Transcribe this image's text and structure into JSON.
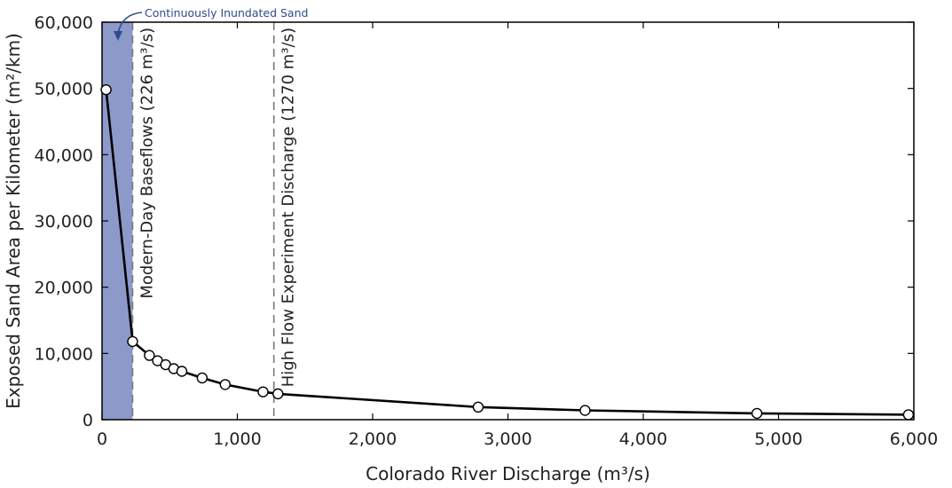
{
  "chart_data": {
    "type": "line",
    "xlabel": "Colorado River Discharge (m³/s)",
    "ylabel": "Exposed Sand Area per Kilometer (m²/km)",
    "xlim": [
      0,
      6000
    ],
    "ylim": [
      0,
      60000
    ],
    "x_ticks": [
      0,
      1000,
      2000,
      3000,
      4000,
      5000,
      6000
    ],
    "x_tick_labels": [
      "0",
      "1,000",
      "2,000",
      "3,000",
      "4,000",
      "5,000",
      "6,000"
    ],
    "y_ticks": [
      0,
      10000,
      20000,
      30000,
      40000,
      50000,
      60000
    ],
    "y_tick_labels": [
      "0",
      "10,000",
      "20,000",
      "30,000",
      "40,000",
      "50,000",
      "60,000"
    ],
    "grid": false,
    "series": [
      {
        "x": [
          30,
          226,
          350,
          410,
          470,
          530,
          590,
          740,
          910,
          1190,
          1300,
          2780,
          3570,
          4840,
          5960
        ],
        "y": [
          49800,
          11800,
          9700,
          8900,
          8300,
          7700,
          7300,
          6300,
          5300,
          4200,
          3900,
          1900,
          1400,
          950,
          750
        ],
        "marker": "open-circle",
        "color": "#000000"
      }
    ],
    "shaded_region": {
      "x_range": [
        0,
        226
      ],
      "color": "#8c99c9",
      "label": "Continuously Inundated Sand"
    },
    "reference_lines": [
      {
        "x": 226,
        "label": "Modern-Day Baseflows (226 m³/s)",
        "style": "dashed"
      },
      {
        "x": 1270,
        "label": "High Flow Experiment Discharge (1270 m³/s)",
        "style": "dashed"
      }
    ],
    "annotations": [
      {
        "text": "Continuously Inundated Sand",
        "color": "#2f4b8c",
        "arrow": true
      }
    ]
  }
}
